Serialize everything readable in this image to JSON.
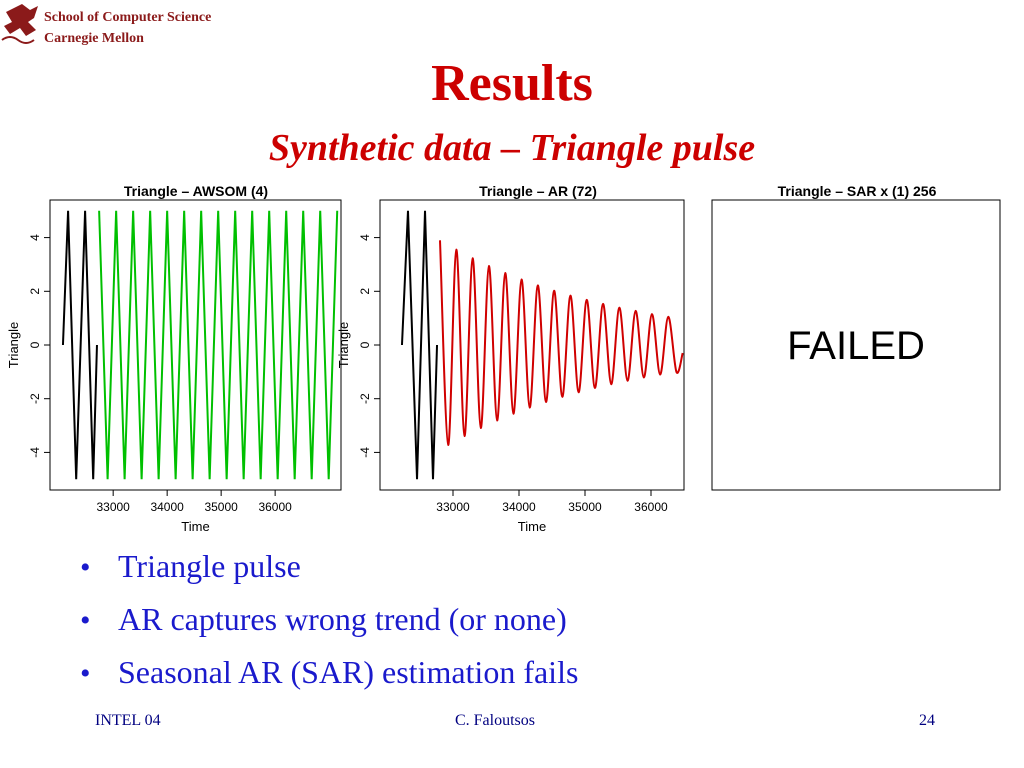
{
  "header": {
    "school": "School of Computer Science",
    "university": "Carnegie Mellon"
  },
  "title": "Results",
  "subtitle": "Synthetic data – Triangle pulse",
  "charts": [
    {
      "type": "line",
      "title": "Triangle – AWSOM (4)",
      "xlabel": "Time",
      "ylabel": "Triangle",
      "xlim": [
        31830,
        37220
      ],
      "ylim": [
        -5.4,
        5.4
      ],
      "xticks": [
        33000,
        34000,
        35000,
        36000
      ],
      "yticks": [
        -4,
        -2,
        0,
        2,
        4
      ],
      "series": [
        {
          "color": "#000000",
          "x": [
            32070,
            32165,
            32315,
            32480,
            32630,
            32700
          ],
          "values": [
            0,
            5,
            -5,
            5,
            -5,
            0
          ]
        },
        {
          "color": "#00c000",
          "x": [
            32740,
            32897,
            33055,
            33212,
            33370,
            33527,
            33685,
            33842,
            34000,
            34157,
            34315,
            34472,
            34630,
            34787,
            34945,
            35102,
            35260,
            35417,
            35575,
            35732,
            35890,
            36047,
            36205,
            36362,
            36520,
            36677,
            36835,
            36992,
            37150
          ],
          "values": [
            5,
            -5,
            5,
            -5,
            5,
            -5,
            5,
            -5,
            5,
            -5,
            5,
            -5,
            5,
            -5,
            5,
            -5,
            5,
            -5,
            5,
            -5,
            5,
            -5,
            5,
            -5,
            5,
            -5,
            5,
            -5,
            5
          ]
        }
      ]
    },
    {
      "type": "line",
      "title": "Triangle – AR (72)",
      "xlabel": "Time",
      "ylabel": "Triangle",
      "xlim": [
        31894,
        36500
      ],
      "ylim": [
        -5.4,
        5.4
      ],
      "xticks": [
        33000,
        34000,
        35000,
        36000
      ],
      "yticks": [
        -4,
        -2,
        0,
        2,
        4
      ],
      "series": [
        {
          "color": "#000000",
          "x": [
            32227,
            32318,
            32455,
            32576,
            32697,
            32758
          ],
          "values": [
            0,
            5,
            -5,
            5,
            -5,
            0
          ]
        },
        {
          "color": "#d00000",
          "smooth": true,
          "x": [
            32803,
            32927,
            33050,
            33174,
            33297,
            33421,
            33544,
            33668,
            33791,
            33915,
            34038,
            34162,
            34285,
            34409,
            34532,
            34656,
            34779,
            34903,
            35026,
            35150,
            35273,
            35397,
            35520,
            35644,
            35767,
            35891,
            36014,
            36138,
            36261,
            36385,
            36480
          ],
          "values": [
            3.9,
            -3.72,
            3.55,
            -3.39,
            3.23,
            -3.09,
            2.94,
            -2.81,
            2.68,
            -2.56,
            2.44,
            -2.33,
            2.22,
            -2.12,
            2.02,
            -1.93,
            1.84,
            -1.76,
            1.68,
            -1.6,
            1.53,
            -1.46,
            1.39,
            -1.33,
            1.27,
            -1.21,
            1.15,
            -1.1,
            1.05,
            -1.0,
            -0.3
          ]
        }
      ]
    },
    {
      "type": "blank",
      "title": "Triangle – SAR x (1) 256",
      "message": "FAILED"
    }
  ],
  "bullets": [
    "Triangle pulse",
    "AR captures wrong trend (or none)",
    "Seasonal AR (SAR) estimation fails"
  ],
  "footer": {
    "left": "INTEL 04",
    "center": "C. Faloutsos",
    "right": "24"
  }
}
